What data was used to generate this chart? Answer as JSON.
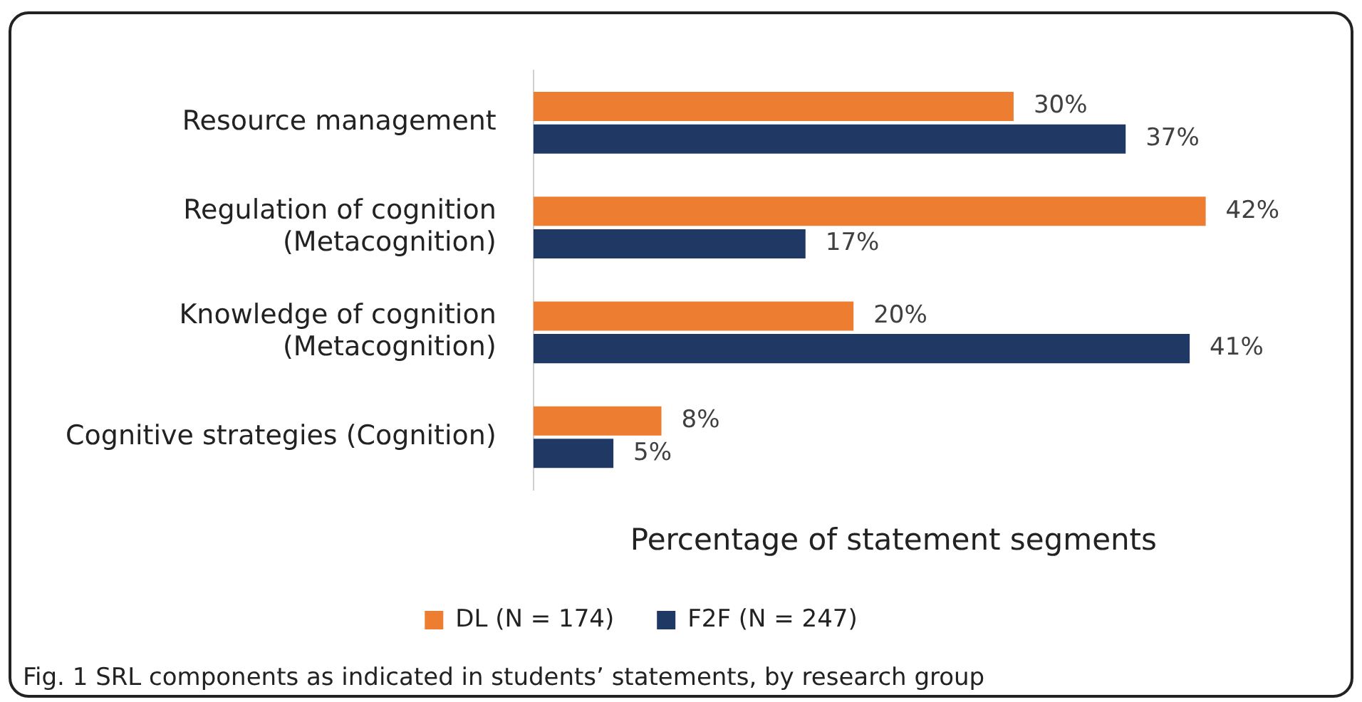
{
  "chart_data": {
    "type": "bar",
    "orientation": "horizontal",
    "xlabel": "Percentage of statement segments",
    "categories": [
      "Resource management",
      "Regulation of cognition (Metacognition)",
      "Knowledge of cognition (Metacognition)",
      "Cognitive strategies (Cognition)"
    ],
    "series": [
      {
        "name": "DL (N = 174)",
        "color": "#ed7d31",
        "values": [
          30,
          42,
          20,
          8
        ],
        "value_labels": [
          "30%",
          "42%",
          "20%",
          "8%"
        ]
      },
      {
        "name": "F2F (N = 247)",
        "color": "#1f3864",
        "values": [
          37,
          17,
          41,
          5
        ],
        "value_labels": [
          "37%",
          "17%",
          "41%",
          "5%"
        ]
      }
    ],
    "grid": false,
    "legend": "bottom",
    "annotations": [
      "Fig. 1 SRL components as indicated in students’ statements, by research group"
    ]
  }
}
